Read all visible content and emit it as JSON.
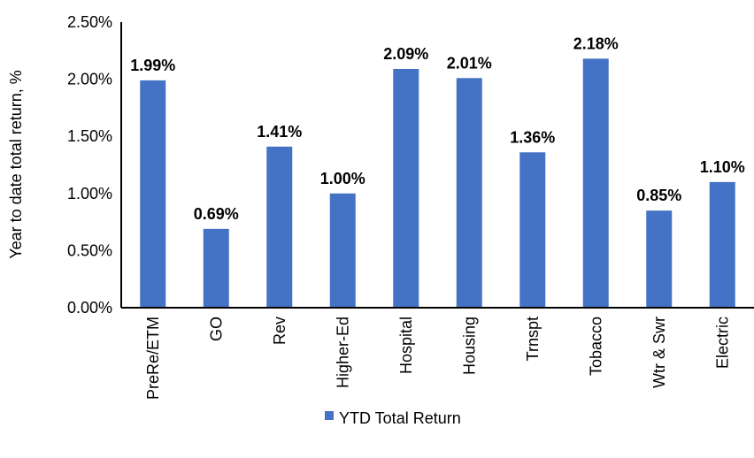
{
  "chart_data": {
    "type": "bar",
    "categories": [
      "PreRe/ETM",
      "GO",
      "Rev",
      "Higher-Ed",
      "Hospital",
      "Housing",
      "Trnspt",
      "Tobacco",
      "Wtr & Swr",
      "Electric"
    ],
    "series": [
      {
        "name": "YTD Total Return",
        "values": [
          1.99,
          0.69,
          1.41,
          1.0,
          2.09,
          2.01,
          1.36,
          2.18,
          0.85,
          1.1
        ],
        "color": "#4472C4"
      }
    ],
    "data_labels": [
      "1.99%",
      "0.69%",
      "1.41%",
      "1.00%",
      "2.09%",
      "2.01%",
      "1.36%",
      "2.18%",
      "0.85%",
      "1.10%"
    ],
    "ylabel": "Year to date total return, %",
    "xlabel": "",
    "ylim": [
      0,
      2.5
    ],
    "yticks": [
      "0.00%",
      "0.50%",
      "1.00%",
      "1.50%",
      "2.00%",
      "2.50%"
    ],
    "grid": false,
    "legend": "bottom"
  }
}
